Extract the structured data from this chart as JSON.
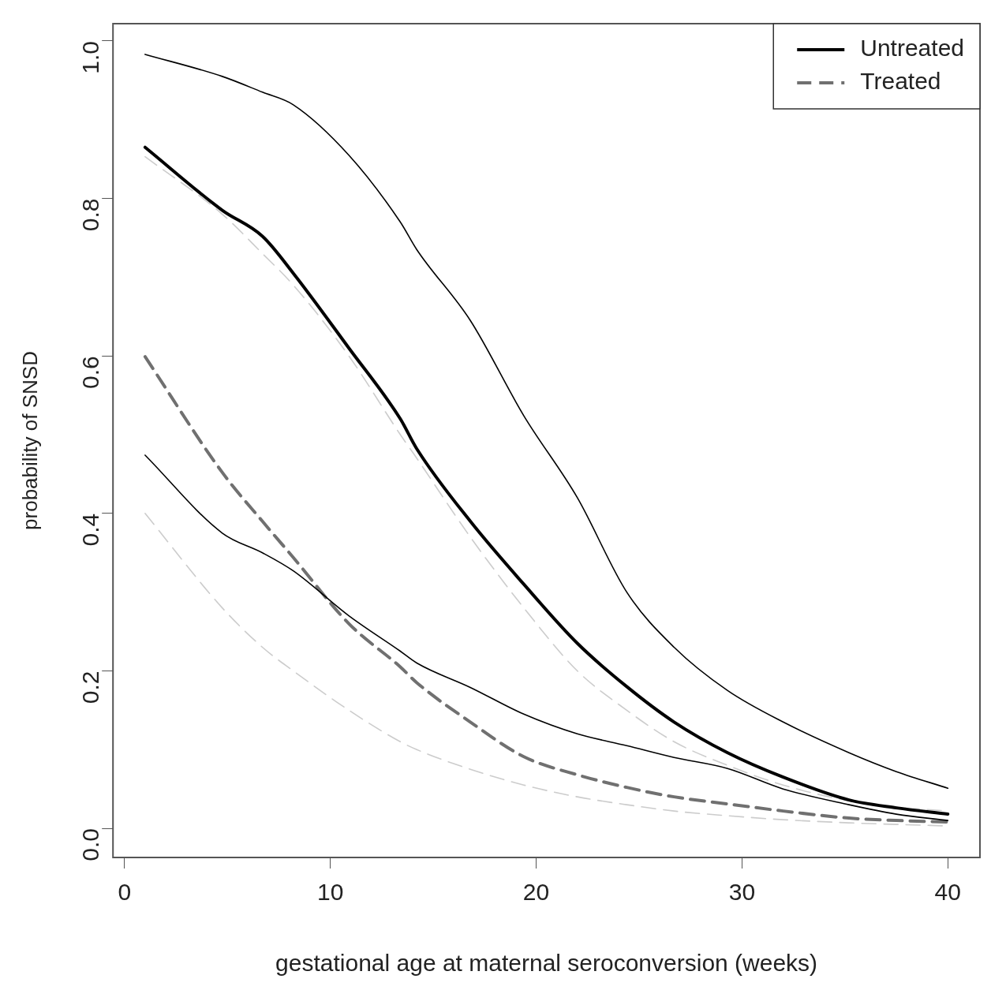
{
  "chart_data": {
    "type": "line",
    "xlabel": "gestational age at maternal seroconversion (weeks)",
    "ylabel": "probability of SNSD",
    "x": [
      1,
      4.75,
      6.7,
      8.2,
      10.9,
      13.4,
      14.2,
      16.8,
      19.4,
      22,
      24.4,
      26.7,
      29.3,
      32,
      35.2,
      37.5,
      40
    ],
    "series": [
      {
        "name": "Untreated",
        "color": "#000000",
        "line_style": "solid",
        "values": [
          0.865,
          0.785,
          0.752,
          0.705,
          0.61,
          0.52,
          0.482,
          0.39,
          0.31,
          0.235,
          0.18,
          0.135,
          0.096,
          0.065,
          0.036,
          0.026,
          0.018
        ]
      },
      {
        "color": "#000000",
        "line_style": "solid",
        "values": [
          0.983,
          0.955,
          0.935,
          0.919,
          0.855,
          0.77,
          0.735,
          0.645,
          0.524,
          0.42,
          0.3,
          0.23,
          0.175,
          0.135,
          0.096,
          0.072,
          0.051
        ]
      },
      {
        "color": "#000000",
        "line_style": "solid",
        "values": [
          0.474,
          0.375,
          0.35,
          0.327,
          0.27,
          0.225,
          0.21,
          0.179,
          0.145,
          0.12,
          0.105,
          0.09,
          0.076,
          0.05,
          0.03,
          0.018,
          0.01
        ]
      },
      {
        "name": "Treated",
        "color": "#707070",
        "line_style": "dashed",
        "values": [
          0.599,
          0.452,
          0.39,
          0.344,
          0.26,
          0.205,
          0.185,
          0.135,
          0.091,
          0.068,
          0.052,
          0.04,
          0.031,
          0.022,
          0.013,
          0.01,
          0.008
        ]
      },
      {
        "color": "#cccccc",
        "line_style": "dashed",
        "values": [
          0.853,
          0.78,
          0.73,
          0.69,
          0.6,
          0.5,
          0.47,
          0.37,
          0.28,
          0.2,
          0.15,
          0.11,
          0.08,
          0.055,
          0.035,
          0.027,
          0.022
        ]
      },
      {
        "color": "#cccccc",
        "line_style": "dashed",
        "values": [
          0.4,
          0.28,
          0.23,
          0.2,
          0.15,
          0.11,
          0.1,
          0.075,
          0.055,
          0.04,
          0.03,
          0.022,
          0.016,
          0.011,
          0.007,
          0.005,
          0.003
        ]
      }
    ],
    "xlim": [
      -0.56,
      41.56
    ],
    "xticks": [
      0,
      10,
      20,
      30,
      40
    ],
    "ylim": [
      -0.037,
      1.022
    ],
    "yticks": [
      {
        "value": 0,
        "label": "0.0"
      },
      0.2,
      0.4,
      0.6,
      0.8,
      {
        "value": 1,
        "label": "1.0"
      }
    ],
    "grid": false,
    "legend": "top right",
    "marker": "none"
  }
}
